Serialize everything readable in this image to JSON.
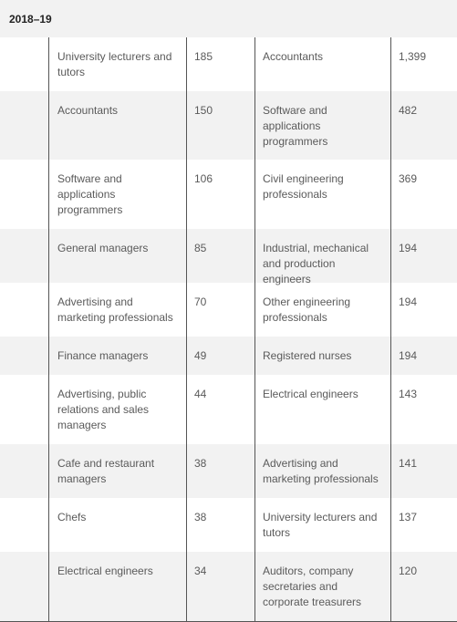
{
  "header": {
    "year": "2018–19"
  },
  "rows": [
    {
      "occ_a": "University lecturers and tutors",
      "val_a": "185",
      "occ_b": "Accountants",
      "val_b": "1,399"
    },
    {
      "occ_a": "Accountants",
      "val_a": "150",
      "occ_b": "Software and applications programmers",
      "val_b": "482"
    },
    {
      "occ_a": "Software and applications programmers",
      "val_a": "106",
      "occ_b": "Civil engineering professionals",
      "val_b": "369"
    },
    {
      "occ_a": "General managers",
      "val_a": "85",
      "occ_b": "Industrial, mechanical and production engineers",
      "val_b": "194"
    },
    {
      "occ_a": "Advertising and marketing professionals",
      "val_a": "70",
      "occ_b": "Other engineering professionals",
      "val_b": "194"
    },
    {
      "occ_a": "Finance managers",
      "val_a": "49",
      "occ_b": "Registered nurses",
      "val_b": "194"
    },
    {
      "occ_a": "Advertising, public relations and sales managers",
      "val_a": "44",
      "occ_b": "Electrical engineers",
      "val_b": "143"
    },
    {
      "occ_a": "Cafe and restaurant managers",
      "val_a": "38",
      "occ_b": "Advertising and marketing professionals",
      "val_b": "141"
    },
    {
      "occ_a": "Chefs",
      "val_a": "38",
      "occ_b": "University lecturers and tutors",
      "val_b": "137"
    },
    {
      "occ_a": "Electrical engineers",
      "val_a": "34",
      "occ_b": "Auditors, company secretaries and corporate treasurers",
      "val_b": "120"
    }
  ]
}
